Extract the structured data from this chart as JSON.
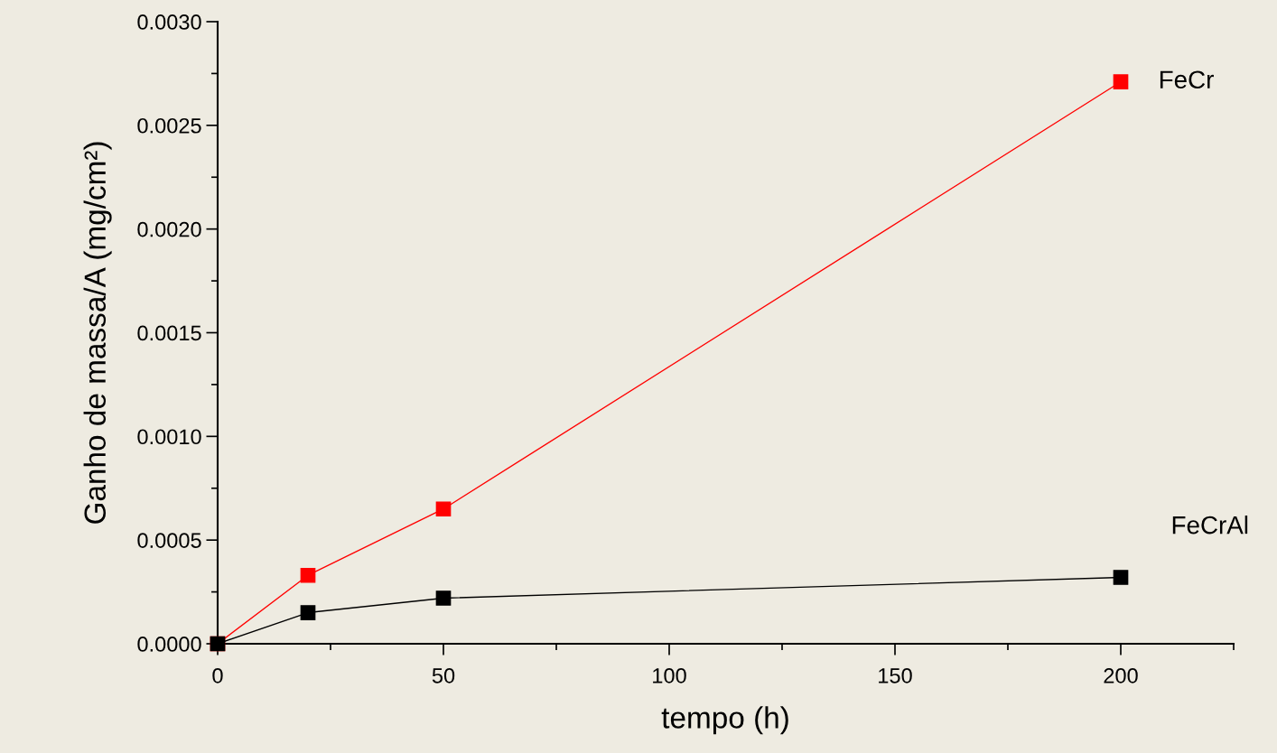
{
  "chart_data": {
    "type": "line",
    "xlabel": "tempo (h)",
    "ylabel": "Ganho de massa/A (mg/cm²)",
    "x": [
      0,
      20,
      50,
      200
    ],
    "series": [
      {
        "name": "FeCr",
        "color": "#ff0000",
        "values": [
          0.0,
          0.00033,
          0.00065,
          0.00271
        ]
      },
      {
        "name": "FeCrAl",
        "color": "#000000",
        "values": [
          0.0,
          0.00015,
          0.00022,
          0.00032
        ]
      }
    ],
    "xlim": [
      0,
      225
    ],
    "xticks": [
      0,
      50,
      100,
      150,
      200
    ],
    "ylim": [
      0,
      0.003
    ],
    "yticks": [
      {
        "value": 0,
        "label": "0.0000"
      },
      {
        "value": 0.0005,
        "label": "0.0005"
      },
      {
        "value": 0.001,
        "label": "0.0010"
      },
      {
        "value": 0.0015,
        "label": "0.0015"
      },
      {
        "value": 0.002,
        "label": "0.0020"
      },
      {
        "value": 0.0025,
        "label": "0.0025"
      },
      {
        "value": 0.003,
        "label": "0.0030"
      }
    ],
    "marker": "square",
    "line_style": "solid",
    "grid": false,
    "legend": false
  }
}
